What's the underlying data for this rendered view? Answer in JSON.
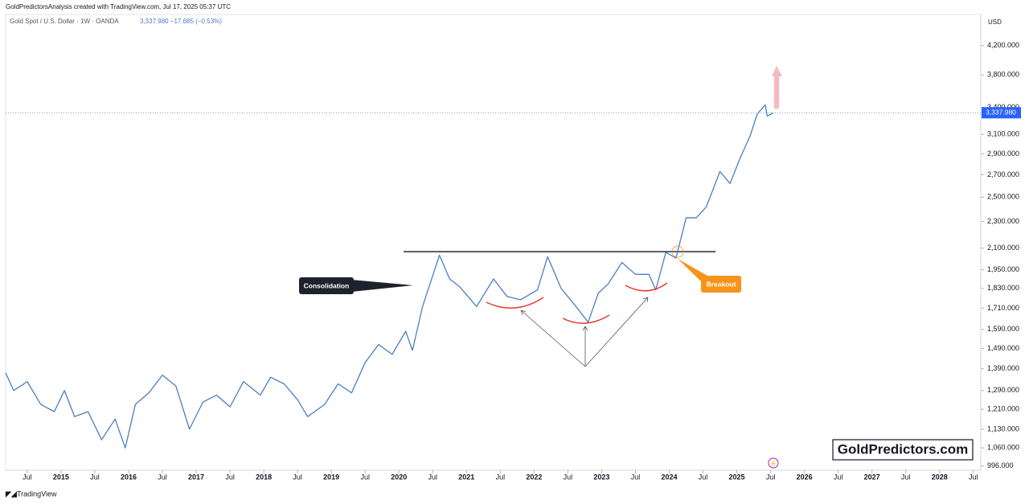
{
  "header": "GoldPredictorsAnalysis created with TradingView.com, Jul 17, 2025 05:37 UTC",
  "quote": "3,337.980 −17.685 (−0.53%)",
  "currency": "USD",
  "watermark": "GoldPredictors.com",
  "footer": "TradingView",
  "chart_data": {
    "type": "line",
    "log_scale": true,
    "grid": false,
    "xlim": [
      2014.18,
      2028.61
    ],
    "ylim": [
      982,
      4673
    ],
    "xticks": [
      {
        "value": 2014.5,
        "label": "Jul"
      },
      2015,
      {
        "value": 2015.5,
        "label": "Jul"
      },
      2016,
      {
        "value": 2016.5,
        "label": "Jul"
      },
      2017,
      {
        "value": 2017.5,
        "label": "Jul"
      },
      2018,
      {
        "value": 2018.5,
        "label": "Jul"
      },
      2019,
      {
        "value": 2019.5,
        "label": "Jul"
      },
      2020,
      {
        "value": 2020.5,
        "label": "Jul"
      },
      2021,
      {
        "value": 2021.5,
        "label": "Jul"
      },
      2022,
      {
        "value": 2022.5,
        "label": "Jul"
      },
      2023,
      {
        "value": 2023.5,
        "label": "Jul"
      },
      2024,
      {
        "value": 2024.5,
        "label": "Jul"
      },
      2025,
      {
        "value": 2025.5,
        "label": "Jul"
      },
      2026,
      {
        "value": 2026.5,
        "label": "Jul"
      },
      2027,
      {
        "value": 2027.5,
        "label": "Jul"
      },
      2028,
      {
        "value": 2028.5,
        "label": "Jul"
      }
    ],
    "yticks": [
      {
        "value": 996,
        "label": "996.000"
      },
      {
        "value": 1060,
        "label": "1,060.000"
      },
      {
        "value": 1130,
        "label": "1,130.000"
      },
      {
        "value": 1210,
        "label": "1,210.000"
      },
      {
        "value": 1290,
        "label": "1,290.000"
      },
      {
        "value": 1390,
        "label": "1,390.000"
      },
      {
        "value": 1490,
        "label": "1,490.000"
      },
      {
        "value": 1590,
        "label": "1,590.000"
      },
      {
        "value": 1710,
        "label": "1,710.000"
      },
      {
        "value": 1830,
        "label": "1,830.000"
      },
      {
        "value": 1950,
        "label": "1,950.000"
      },
      {
        "value": 2100,
        "label": "2,100.000"
      },
      {
        "value": 2300,
        "label": "2,300.000"
      },
      {
        "value": 2500,
        "label": "2,500.000"
      },
      {
        "value": 2700,
        "label": "2,700.000"
      },
      {
        "value": 2900,
        "label": "2,900.000"
      },
      {
        "value": 3100,
        "label": "3,100.000"
      },
      {
        "value": 3400,
        "label": "3,400.000"
      },
      {
        "value": 3800,
        "label": "3,800.000"
      },
      {
        "value": 4200,
        "label": "4,200.000"
      }
    ],
    "x": [
      2014.18,
      2014.3,
      2014.5,
      2014.7,
      2014.9,
      2015.05,
      2015.2,
      2015.4,
      2015.6,
      2015.8,
      2015.95,
      2016.1,
      2016.3,
      2016.5,
      2016.7,
      2016.9,
      2017.1,
      2017.3,
      2017.5,
      2017.7,
      2017.95,
      2018.1,
      2018.3,
      2018.5,
      2018.65,
      2018.9,
      2019.1,
      2019.3,
      2019.5,
      2019.7,
      2019.9,
      2020.1,
      2020.2,
      2020.35,
      2020.6,
      2020.75,
      2020.9,
      2021.15,
      2021.4,
      2021.6,
      2021.8,
      2022.05,
      2022.2,
      2022.4,
      2022.6,
      2022.8,
      2022.95,
      2023.1,
      2023.3,
      2023.5,
      2023.7,
      2023.8,
      2023.95,
      2024.1,
      2024.25,
      2024.4,
      2024.55,
      2024.75,
      2024.9,
      2025.05,
      2025.2,
      2025.3,
      2025.42,
      2025.45,
      2025.54
    ],
    "series": [
      {
        "name": "Gold Spot / U.S. Dollar · 1W · OANDA",
        "color": "#4a7fc1",
        "values": [
          1370,
          1290,
          1330,
          1230,
          1200,
          1290,
          1180,
          1200,
          1090,
          1170,
          1060,
          1230,
          1280,
          1360,
          1310,
          1130,
          1240,
          1270,
          1220,
          1330,
          1270,
          1350,
          1320,
          1250,
          1180,
          1230,
          1320,
          1280,
          1420,
          1510,
          1460,
          1580,
          1480,
          1720,
          2050,
          1890,
          1840,
          1720,
          1890,
          1780,
          1760,
          1820,
          2040,
          1830,
          1730,
          1630,
          1800,
          1860,
          2000,
          1920,
          1920,
          1820,
          2070,
          2030,
          2330,
          2330,
          2420,
          2730,
          2620,
          2860,
          3090,
          3320,
          3430,
          3300,
          3338
        ]
      }
    ],
    "last_price": {
      "value": 3337.98,
      "label": "3,337.980"
    },
    "resistance": 2075,
    "annotations": [
      "Consolidation",
      "Breakout"
    ]
  }
}
